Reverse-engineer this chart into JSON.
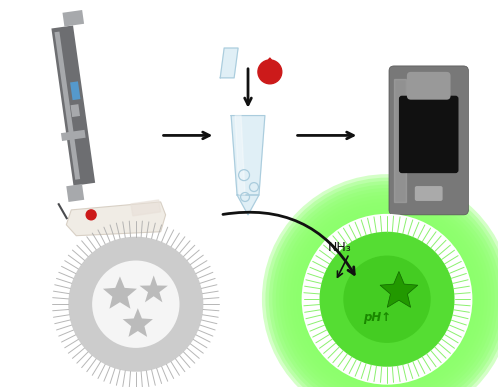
{
  "bg_color": "#ffffff",
  "fig_width": 5.0,
  "fig_height": 3.88,
  "dpi": 100,
  "lancer_color": "#6d6e71",
  "lancer_light": "#a7a9ac",
  "lancer_dark": "#4a4b4e",
  "finger_color": "#f0ece5",
  "finger_edge": "#d8d0c5",
  "blood_color": "#cc1a1a",
  "tube_color": "#ddeef5",
  "tube_outline": "#aaccdd",
  "tube_grad": "#c5e0ee",
  "device_body": "#787878",
  "device_body2": "#888888",
  "device_screen": "#111111",
  "device_light": "#aaaaaa",
  "device_top": "#999999",
  "arrow_color": "#111111",
  "star_gray": "#bbbbbb",
  "star_gray_edge": "#999999",
  "star_green": "#229900",
  "star_green_edge": "#116600",
  "vesicle_ring_gray": "#cccccc",
  "vesicle_inner_gray": "#f5f5f5",
  "vesicle_spike_gray": "#aaaaaa",
  "vesicle_ring_green": "#55dd33",
  "vesicle_inner_green": "#44cc22",
  "vesicle_spike_green": "#77ee55",
  "vesicle_glow_green": "#88ff66",
  "text_nh3": "NH₃",
  "text_ph": "pH↑"
}
